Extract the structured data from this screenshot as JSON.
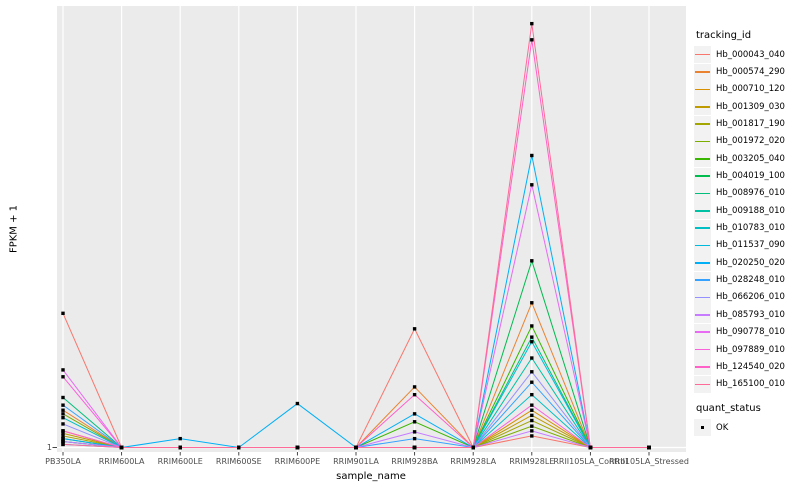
{
  "figure": {
    "background": "#FFFFFF",
    "panel_bg": "#EBEBEB",
    "grid_color": "#FFFFFF",
    "tick_color": "#333333",
    "tick_label_color": "#4D4D4D"
  },
  "legend": {
    "tracking_title": "tracking_id",
    "quant_title": "quant_status",
    "quant_items": [
      {
        "label": "OK",
        "marker": "black-square"
      }
    ]
  },
  "chart_data": {
    "type": "line",
    "title": "",
    "xlabel": "sample_name",
    "ylabel": "FPKM + 1",
    "y_scale": "log10",
    "ylim": [
      1,
      1000
    ],
    "y_ticks": [
      {
        "value": 1,
        "label": "1"
      }
    ],
    "grid": "vertical-major",
    "legend_position": "right",
    "point_marker": {
      "shape": "square",
      "color": "#000000",
      "size": 3.4
    },
    "categories": [
      "PB350LA",
      "RRIM600LA",
      "RRIM600LE",
      "RRIM600SE",
      "RRIM600PE",
      "RRIM901LA",
      "RRIM928BA",
      "RRIM928LA",
      "RRIM928LE",
      "RRII105LA_Control",
      "RRII105LA_Stressed"
    ],
    "series": [
      {
        "name": "Hb_000043_040",
        "color": "#F8766D",
        "values": [
          8.3,
          1,
          1,
          1,
          1,
          1,
          6.5,
          1,
          1.2,
          1,
          1
        ]
      },
      {
        "name": "Hb_000574_290",
        "color": "#EA8331",
        "values": [
          1.8,
          1,
          1,
          1,
          1,
          1,
          2.6,
          1,
          9.8,
          1,
          1
        ]
      },
      {
        "name": "Hb_000710_120",
        "color": "#D89000",
        "values": [
          1.3,
          1,
          1,
          1,
          1,
          1,
          1,
          1,
          1.8,
          1,
          1
        ]
      },
      {
        "name": "Hb_001309_030",
        "color": "#C09B00",
        "values": [
          1.25,
          1,
          1,
          1,
          1,
          1,
          1,
          1,
          1.66,
          1,
          1
        ]
      },
      {
        "name": "Hb_001817_190",
        "color": "#A3A500",
        "values": [
          1.2,
          1,
          1,
          1,
          1,
          1,
          1,
          1,
          1.53,
          1,
          1
        ]
      },
      {
        "name": "Hb_001972_020",
        "color": "#7CAE00",
        "values": [
          1.7,
          1,
          1,
          1,
          1,
          1,
          1,
          1,
          1.4,
          1,
          1
        ]
      },
      {
        "name": "Hb_003205_040",
        "color": "#39B600",
        "values": [
          1.15,
          1,
          1,
          1,
          1,
          1,
          1.5,
          1,
          6.8,
          1,
          1
        ]
      },
      {
        "name": "Hb_004019_100",
        "color": "#00BB4E",
        "values": [
          1.1,
          1,
          1,
          1,
          1,
          1,
          1,
          1,
          19,
          1,
          1
        ]
      },
      {
        "name": "Hb_008976_010",
        "color": "#00BF7D",
        "values": [
          2.2,
          1,
          1,
          1,
          1,
          1,
          1,
          1,
          5.7,
          1,
          1
        ]
      },
      {
        "name": "Hb_009188_010",
        "color": "#00C1A3",
        "values": [
          1.1,
          1,
          1,
          1,
          1,
          1,
          1,
          1,
          4.1,
          1,
          1
        ]
      },
      {
        "name": "Hb_010783_010",
        "color": "#00BFC4",
        "values": [
          1.6,
          1,
          1,
          1,
          1,
          1,
          1,
          1,
          2.3,
          1,
          1
        ]
      },
      {
        "name": "Hb_011537_090",
        "color": "#00BADE",
        "values": [
          1.05,
          1,
          1,
          1,
          1,
          1,
          1,
          1,
          5.3,
          1,
          1
        ]
      },
      {
        "name": "Hb_020250_020",
        "color": "#00B0F6",
        "values": [
          1.15,
          1,
          1.15,
          1,
          2.0,
          1,
          1.7,
          1,
          100,
          1,
          1
        ]
      },
      {
        "name": "Hb_028248_010",
        "color": "#35A2FF",
        "values": [
          1.95,
          1,
          1,
          1,
          1,
          1,
          1.15,
          1,
          2.8,
          1,
          1
        ]
      },
      {
        "name": "Hb_066206_010",
        "color": "#9590FF",
        "values": [
          1.45,
          1,
          1,
          1,
          1,
          1,
          1,
          1,
          3.3,
          1,
          1
        ]
      },
      {
        "name": "Hb_085793_010",
        "color": "#C77CFF",
        "values": [
          1.1,
          1,
          1,
          1,
          1,
          1,
          1.28,
          1,
          1.3,
          1,
          1
        ]
      },
      {
        "name": "Hb_090778_010",
        "color": "#E76BF3",
        "values": [
          3.4,
          1,
          1,
          1,
          1,
          1,
          1,
          1,
          63,
          1,
          1
        ]
      },
      {
        "name": "Hb_097889_010",
        "color": "#FA62DB",
        "values": [
          3.05,
          1,
          1,
          1,
          1,
          1,
          1,
          1,
          1.95,
          1,
          1
        ]
      },
      {
        "name": "Hb_124540_020",
        "color": "#FF61C9",
        "values": [
          1.3,
          1,
          1,
          1,
          1,
          1,
          2.3,
          1,
          620,
          1,
          1
        ]
      },
      {
        "name": "Hb_165100_010",
        "color": "#FF6A98",
        "values": [
          1.05,
          1,
          1,
          1,
          1,
          1,
          1,
          1,
          800,
          1,
          1
        ]
      }
    ]
  }
}
